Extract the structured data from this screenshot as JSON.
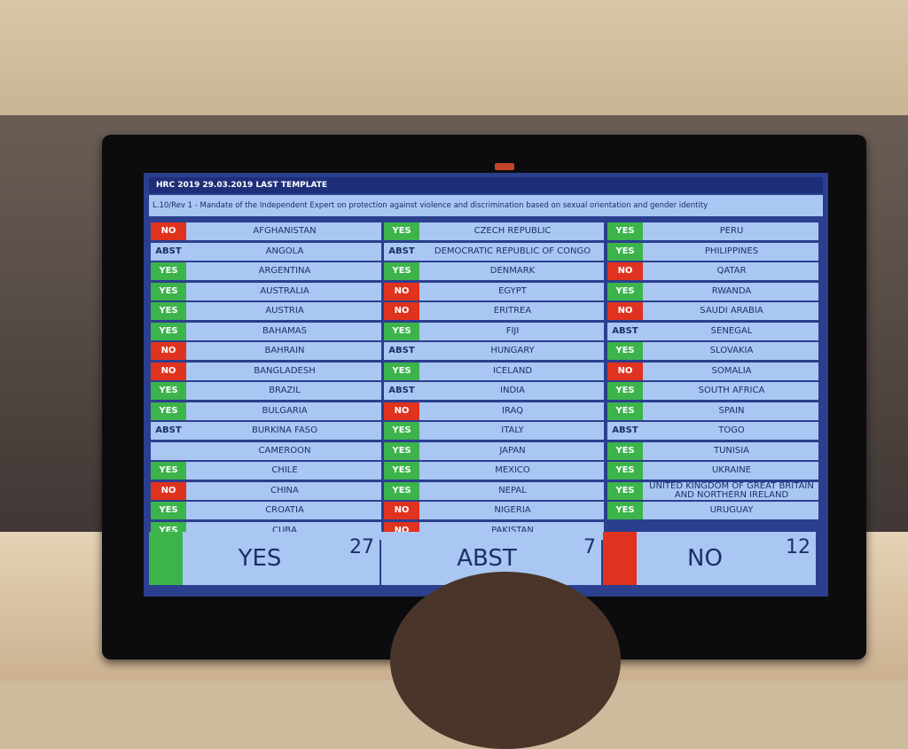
{
  "header": {
    "title": "HRC 2019 29.03.2019 LAST TEMPLATE",
    "resolution": "L.10/Rev 1 - Mandate of the Independent Expert on protection against violence and discrimination based on sexual orientation and gender identity"
  },
  "vote_colors": {
    "YES": "#3cb44b",
    "NO": "#e0331f",
    "ABST": "#a9c7f2"
  },
  "vote_text_colors": {
    "YES": "#ffffff",
    "NO": "#ffffff",
    "ABST": "#1e2e6a"
  },
  "columns": [
    [
      {
        "country": "AFGHANISTAN",
        "vote": "NO"
      },
      {
        "country": "ANGOLA",
        "vote": "ABST"
      },
      {
        "country": "ARGENTINA",
        "vote": "YES"
      },
      {
        "country": "AUSTRALIA",
        "vote": "YES"
      },
      {
        "country": "AUSTRIA",
        "vote": "YES"
      },
      {
        "country": "BAHAMAS",
        "vote": "YES"
      },
      {
        "country": "BAHRAIN",
        "vote": "NO"
      },
      {
        "country": "BANGLADESH",
        "vote": "NO"
      },
      {
        "country": "BRAZIL",
        "vote": "YES"
      },
      {
        "country": "BULGARIA",
        "vote": "YES"
      },
      {
        "country": "BURKINA FASO",
        "vote": "ABST"
      },
      {
        "country": "CAMEROON",
        "vote": null
      },
      {
        "country": "CHILE",
        "vote": "YES"
      },
      {
        "country": "CHINA",
        "vote": "NO"
      },
      {
        "country": "CROATIA",
        "vote": "YES"
      },
      {
        "country": "CUBA",
        "vote": "YES"
      }
    ],
    [
      {
        "country": "CZECH REPUBLIC",
        "vote": "YES"
      },
      {
        "country": "DEMOCRATIC REPUBLIC OF CONGO",
        "vote": "ABST"
      },
      {
        "country": "DENMARK",
        "vote": "YES"
      },
      {
        "country": "EGYPT",
        "vote": "NO"
      },
      {
        "country": "ERITREA",
        "vote": "NO"
      },
      {
        "country": "FIJI",
        "vote": "YES"
      },
      {
        "country": "HUNGARY",
        "vote": "ABST"
      },
      {
        "country": "ICELAND",
        "vote": "YES"
      },
      {
        "country": "INDIA",
        "vote": "ABST"
      },
      {
        "country": "IRAQ",
        "vote": "NO"
      },
      {
        "country": "ITALY",
        "vote": "YES"
      },
      {
        "country": "JAPAN",
        "vote": "YES"
      },
      {
        "country": "MEXICO",
        "vote": "YES"
      },
      {
        "country": "NEPAL",
        "vote": "YES"
      },
      {
        "country": "NIGERIA",
        "vote": "NO"
      },
      {
        "country": "PAKISTAN",
        "vote": "NO"
      }
    ],
    [
      {
        "country": "PERU",
        "vote": "YES"
      },
      {
        "country": "PHILIPPINES",
        "vote": "YES"
      },
      {
        "country": "QATAR",
        "vote": "NO"
      },
      {
        "country": "RWANDA",
        "vote": "YES"
      },
      {
        "country": "SAUDI ARABIA",
        "vote": "NO"
      },
      {
        "country": "SENEGAL",
        "vote": "ABST"
      },
      {
        "country": "SLOVAKIA",
        "vote": "YES"
      },
      {
        "country": "SOMALIA",
        "vote": "NO"
      },
      {
        "country": "SOUTH AFRICA",
        "vote": "YES"
      },
      {
        "country": "SPAIN",
        "vote": "YES"
      },
      {
        "country": "TOGO",
        "vote": "ABST"
      },
      {
        "country": "TUNISIA",
        "vote": "YES"
      },
      {
        "country": "UKRAINE",
        "vote": "YES"
      },
      {
        "country": "UNITED KINGDOM OF GREAT BRITAIN AND NORTHERN IRELAND",
        "vote": "YES"
      },
      {
        "country": "URUGUAY",
        "vote": "YES"
      }
    ]
  ],
  "totals": [
    {
      "label": "YES",
      "count": 27
    },
    {
      "label": "ABST",
      "count": 7
    },
    {
      "label": "NO",
      "count": 12
    }
  ]
}
